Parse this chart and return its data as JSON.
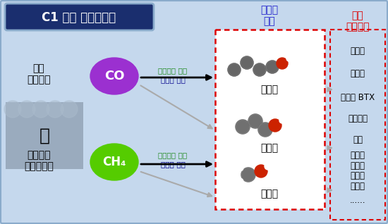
{
  "title": "C1 가스 리파이너리",
  "bg_color": "#c5d8ed",
  "input_label1": "산업\n부생가스",
  "input_label2": "세일가스\n바이오가스",
  "co_label": "CO",
  "ch4_label": "CH₄",
  "co_color": "#9b30d0",
  "ch4_color": "#55cc00",
  "arrow_label1a": "생물막적 전환",
  "arrow_label1b": "화학적 전환",
  "arrow_label2a": "생물막적 전환",
  "arrow_label2b": "화학적 전환",
  "fuel_box_title": "수송용\n연료",
  "fuel_items": [
    "부탄올",
    "에탄올",
    "메탄올"
  ],
  "chem_title": "기초\n화학원료",
  "chem_items": [
    "올레핀",
    "유기산",
    "방향족 BTX",
    "탄화수소",
    "아민",
    "고분자\n단량체",
    "......"
  ],
  "fuel_box_color": "#dd0000",
  "chem_title_color": "#dd0000",
  "title_box_bg": "#1a2e6e",
  "title_box_border": "#1a2e6e",
  "title_text_color": "#ffffff",
  "arrow_green": "#228B22",
  "arrow_blue": "#00008B"
}
